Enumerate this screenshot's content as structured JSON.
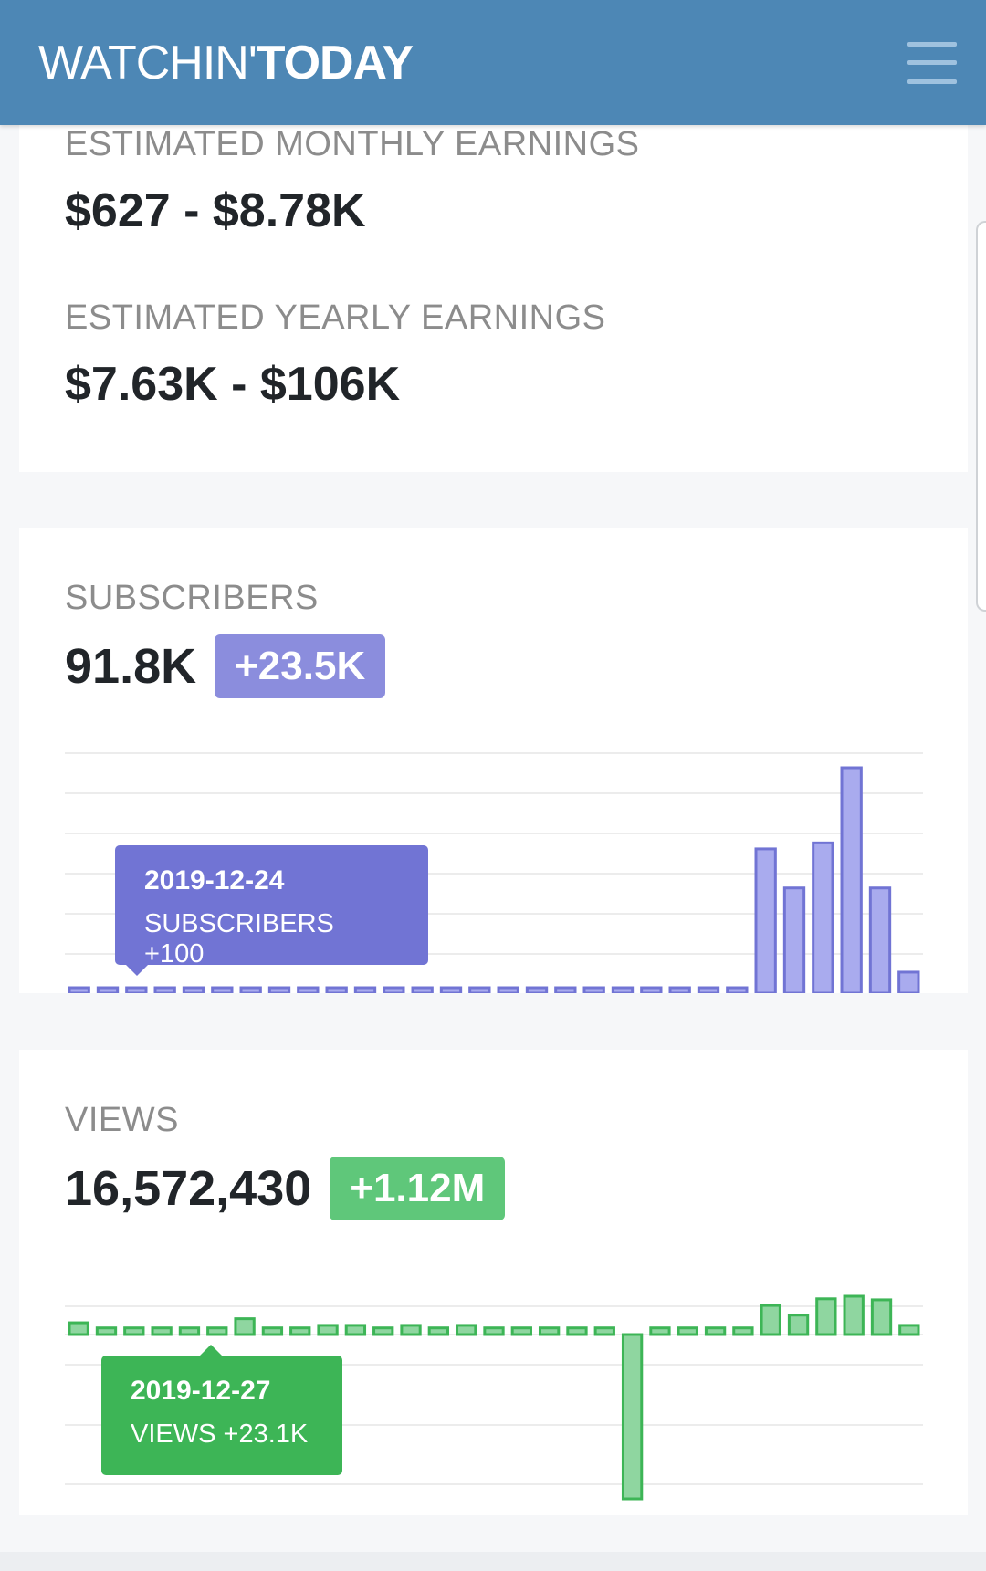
{
  "header": {
    "logo_light": "WATCHIN'",
    "logo_bold": "TODAY",
    "menu_icon": "hamburger-menu-icon"
  },
  "earnings": {
    "monthly_label": "ESTIMATED MONTHLY EARNINGS",
    "monthly_value": "$627 - $8.78K",
    "yearly_label": "ESTIMATED YEARLY EARNINGS",
    "yearly_value": "$7.63K - $106K"
  },
  "subscribers": {
    "label": "SUBSCRIBERS",
    "total": "91.8K",
    "change": "+23.5K",
    "tooltip_date": "2019-12-24",
    "tooltip_text": "SUBSCRIBERS +100"
  },
  "views": {
    "label": "VIEWS",
    "total": "16,572,430",
    "change": "+1.12M",
    "tooltip_date": "2019-12-27",
    "tooltip_text": "VIEWS +23.1K"
  },
  "colors": {
    "header": "#4d87b5",
    "subs_bar": "#a9abee",
    "subs_bar_stroke": "#7174d4",
    "views_bar": "#8fd6a0",
    "views_bar_stroke": "#3db556"
  },
  "chart_data": [
    {
      "type": "bar",
      "series": [
        {
          "values": [
            100,
            50,
            50,
            50,
            50,
            50,
            150,
            50,
            50,
            100,
            100,
            50,
            100,
            50,
            150,
            50,
            50,
            100,
            50,
            50,
            100,
            50,
            50,
            50,
            4800,
            3500,
            5000,
            7500,
            3500,
            700
          ]
        }
      ],
      "grid": true
    },
    {
      "type": "bar",
      "series": [
        {
          "values": [
            23100,
            13000,
            13000,
            13000,
            13000,
            13000,
            31000,
            13000,
            13000,
            18000,
            18000,
            13000,
            18000,
            13000,
            18000,
            13000,
            13000,
            13000,
            13000,
            13000,
            -330000,
            13000,
            13000,
            13000,
            13000,
            57000,
            38000,
            70000,
            75000,
            68000,
            18000
          ]
        }
      ],
      "grid": true
    }
  ]
}
